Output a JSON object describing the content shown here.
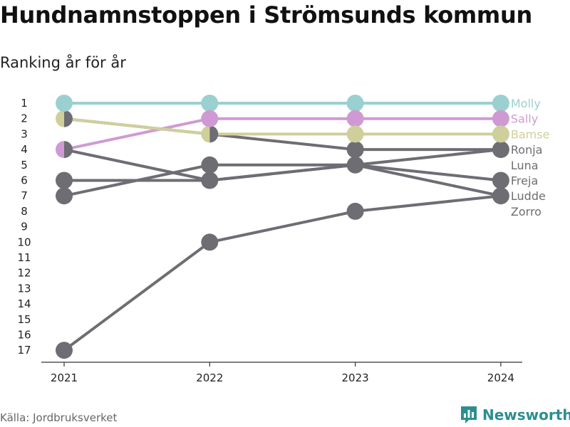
{
  "title": "Hundnamnstoppen i Strömsunds kommun",
  "subtitle": "Ranking år för år",
  "source": "Källa: Jordbruksverket",
  "brand": {
    "name": "Newsworthy"
  },
  "colors": {
    "Molly": "#9bd0d0",
    "Sally": "#cf9ad4",
    "Bamse": "#cfcf9c",
    "other": "#6e6d73"
  },
  "chart_data": {
    "type": "line",
    "title": "Hundnamnstoppen i Strömsunds kommun",
    "subtitle": "Ranking år för år",
    "x": [
      "2021",
      "2022",
      "2023",
      "2024"
    ],
    "y_ticks": [
      1,
      2,
      3,
      4,
      5,
      6,
      7,
      8,
      9,
      10,
      11,
      12,
      13,
      14,
      15,
      16,
      17
    ],
    "y_reversed": true,
    "ylim": [
      1,
      17
    ],
    "series": [
      {
        "name": "Molly",
        "values": [
          1,
          1,
          1,
          1
        ]
      },
      {
        "name": "Sally",
        "values": [
          4,
          2,
          2,
          2
        ]
      },
      {
        "name": "Bamse",
        "values": [
          2,
          3,
          3,
          3
        ]
      },
      {
        "name": "Ronja",
        "values": [
          2,
          3,
          4,
          4
        ]
      },
      {
        "name": "Luna",
        "values": [
          4,
          6,
          5,
          4
        ]
      },
      {
        "name": "Freja",
        "values": [
          6,
          6,
          5,
          6
        ]
      },
      {
        "name": "Ludde",
        "values": [
          7,
          5,
          5,
          7
        ]
      },
      {
        "name": "Zorro",
        "values": [
          17,
          10,
          8,
          7
        ]
      }
    ]
  }
}
